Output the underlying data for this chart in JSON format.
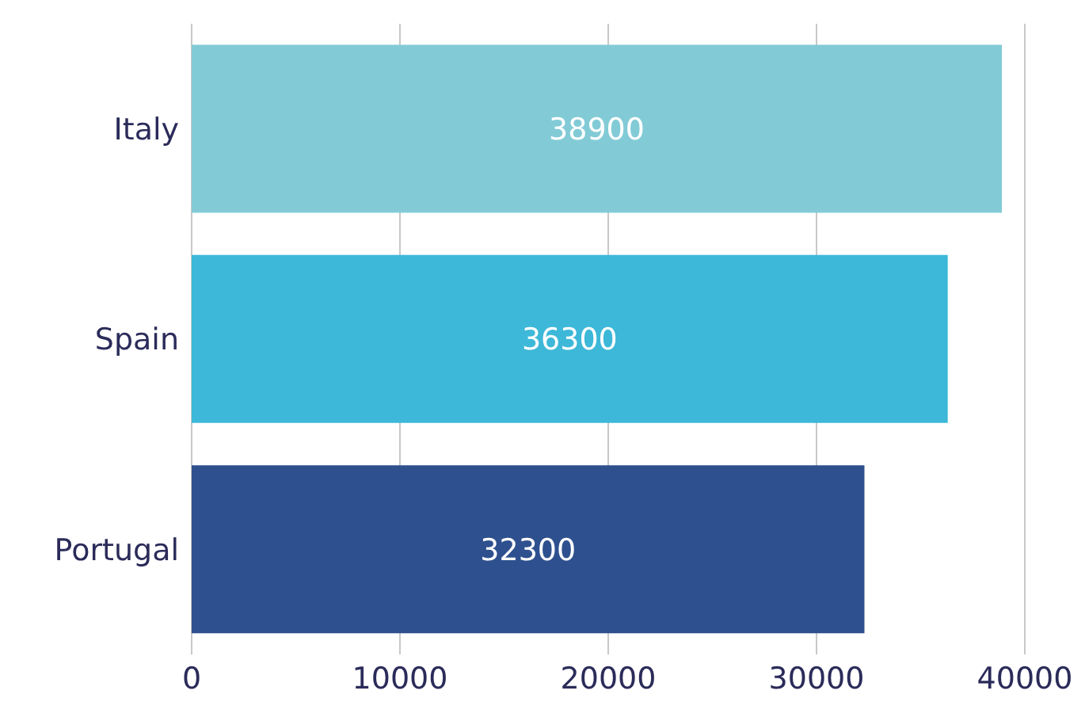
{
  "chart_data": {
    "type": "bar",
    "orientation": "horizontal",
    "categories": [
      "Italy",
      "Spain",
      "Portugal"
    ],
    "values": [
      38900,
      36300,
      32300
    ],
    "colors": [
      "#82cbd6",
      "#3db8d8",
      "#2e508e"
    ],
    "xlim": [
      0,
      40000
    ],
    "xticks": [
      0,
      10000,
      20000,
      30000,
      40000
    ],
    "grid": "x",
    "data_labels": true
  }
}
